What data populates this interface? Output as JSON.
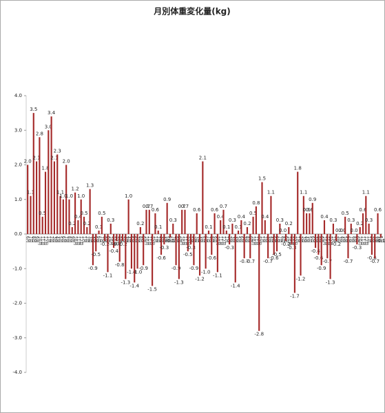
{
  "chart_data": {
    "type": "bar",
    "title": "月別体重変化量(kg)",
    "categories": [
      "6月",
      "7月",
      "8月",
      "9月",
      "10月",
      "11月",
      "12月",
      "1月",
      "2月",
      "3月",
      "4月",
      "5月",
      "6月",
      "7月",
      "8月",
      "9月",
      "10月",
      "11月",
      "12月",
      "1月",
      "2月",
      "3月",
      "4月",
      "5月",
      "6月",
      "7月",
      "8月",
      "9月",
      "10月",
      "11月",
      "12月",
      "1月",
      "2月",
      "3月",
      "4月",
      "5月",
      "6月",
      "7月",
      "8月",
      "9月",
      "10月",
      "11月",
      "12月",
      "1月",
      "2月",
      "3月",
      "4月",
      "5月",
      "6月",
      "7月",
      "8月",
      "9月",
      "10月",
      "11月",
      "12月",
      "1月",
      "2月",
      "3月",
      "4月",
      "5月",
      "6月",
      "7月",
      "8月",
      "9月",
      "10月",
      "11月",
      "12月",
      "1月",
      "2月",
      "3月",
      "4月",
      "5月",
      "6月",
      "7月",
      "8月",
      "9月",
      "10月",
      "11月",
      "12月",
      "1月",
      "2月",
      "3月",
      "4月",
      "5月",
      "6月",
      "7月",
      "8月",
      "9月",
      "10月",
      "11月",
      "12月",
      "1月",
      "2月",
      "3月",
      "4月",
      "5月",
      "6月",
      "7月",
      "8月",
      "9月",
      "10月",
      "11月",
      "12月",
      "1月",
      "2月",
      "3月",
      "4月",
      "5月",
      "6月",
      "7月",
      "8月",
      "9月",
      "10月",
      "11月",
      "12月",
      "1月",
      "2月",
      "3月",
      "4月",
      "5月"
    ],
    "values": [
      2.0,
      1.1,
      3.5,
      2.1,
      2.8,
      0.5,
      1.8,
      3.0,
      3.4,
      2.1,
      2.3,
      1.1,
      1.0,
      2.0,
      1.0,
      0.2,
      1.2,
      0.4,
      1.0,
      0.5,
      0.2,
      1.3,
      -0.9,
      -0.5,
      0.1,
      0.5,
      -0.2,
      -1.1,
      0.3,
      -0.4,
      -0.2,
      -0.8,
      -0.2,
      -1.3,
      1.0,
      -1.0,
      -1.4,
      -1.0,
      0.2,
      -0.9,
      0.7,
      0.7,
      -1.5,
      0.6,
      0.1,
      -0.6,
      -0.3,
      0.9,
      -0.1,
      0.3,
      -0.9,
      -1.3,
      0.7,
      0.7,
      -0.5,
      -0.3,
      -0.9,
      0.6,
      -1.2,
      2.1,
      -1.0,
      0.1,
      -0.6,
      0.6,
      -1.1,
      0.4,
      0.7,
      0.1,
      -0.3,
      0.3,
      -1.4,
      0.1,
      0.4,
      -0.7,
      0.2,
      -0.7,
      0.5,
      0.8,
      -2.8,
      1.5,
      0.4,
      -0.7,
      1.1,
      -0.6,
      -0.5,
      0.3,
      0.0,
      -0.2,
      0.2,
      -0.3,
      -1.7,
      1.8,
      -1.2,
      1.1,
      0.6,
      0.6,
      0.9,
      -0.4,
      -0.6,
      -0.9,
      0.4,
      -0.7,
      -1.3,
      0.3,
      -0.2,
      0.0,
      0.0,
      0.5,
      -0.7,
      0.3,
      0.0,
      -0.3,
      0.2,
      0.6,
      1.1,
      0.3,
      -0.6,
      -0.7,
      0.6,
      -0.1
    ],
    "value_labels": [
      "2.0",
      "1.1",
      "3.5",
      "2.1",
      "2.8",
      "0.5",
      "1.8",
      "3.0",
      "3.4",
      "2.1",
      "2.3",
      "1.1",
      "1.0",
      "2.0",
      "1.0",
      "0.2",
      "1.2",
      "0.4",
      "1.0",
      "0.5",
      "0.2",
      "1.3",
      "-0.9",
      "-0.5",
      "0.1",
      "0.5",
      "-0.2",
      "-1.1",
      "0.3",
      "-0.4",
      "-0.2",
      "-0.8",
      "-0.2",
      "-1.3",
      "1.0",
      "-1.0",
      "-1.4",
      "-1.0",
      "0.2",
      "-0.9",
      "0.7",
      "0.7",
      "-1.5",
      "0.6",
      "0.1",
      "-0.6",
      "-0.3",
      "0.9",
      "-0.1",
      "0.3",
      "-0.9",
      "-1.3",
      "0.7",
      "0.7",
      "-0.5",
      "-0.3",
      "-0.9",
      "0.6",
      "-1.2",
      "2.1",
      "-1.0",
      "0.1",
      "-0.6",
      "0.6",
      "-1.1",
      "0.4",
      "0.7",
      "0.1",
      "-0.3",
      "0.3",
      "-1.4",
      "0.1",
      "0.4",
      "-0.7",
      "0.2",
      "-0.7",
      "0.5",
      "0.8",
      "-2.8",
      "1.5",
      "0.4",
      "-0.7",
      "1.1",
      "-0.6",
      "-0.5",
      "0.3",
      "0.0",
      "-0.2",
      "0.2",
      "-0.3",
      "-1.7",
      "1.8",
      "-1.2",
      "1.1",
      "0.6",
      "0.6",
      "0.9",
      "-0.4",
      "-0.6",
      "-0.9",
      "0.4",
      "-0.7",
      "-1.3",
      "0.3",
      "-0.2",
      "0.0",
      "0.0",
      "0.5",
      "-0.7",
      "0.3",
      "0.0",
      "-0.3",
      "0.2",
      "0.6",
      "1.1",
      "0.3",
      "-0.6",
      "-0.7",
      "0.6",
      "-0.1"
    ],
    "color": "#a52a2a",
    "ylim": [
      -4,
      4
    ],
    "yticks": [
      {
        "value": -4,
        "label": "-4.0"
      },
      {
        "value": -3,
        "label": "-3.0"
      },
      {
        "value": -2,
        "label": "-2.0"
      },
      {
        "value": -1,
        "label": "-1.0"
      },
      {
        "value": 0,
        "label": "0.0"
      },
      {
        "value": 1,
        "label": "1.0"
      },
      {
        "value": 2,
        "label": "2.0"
      },
      {
        "value": 3,
        "label": "3.0"
      },
      {
        "value": 4,
        "label": "4.0"
      }
    ],
    "grid": false
  }
}
